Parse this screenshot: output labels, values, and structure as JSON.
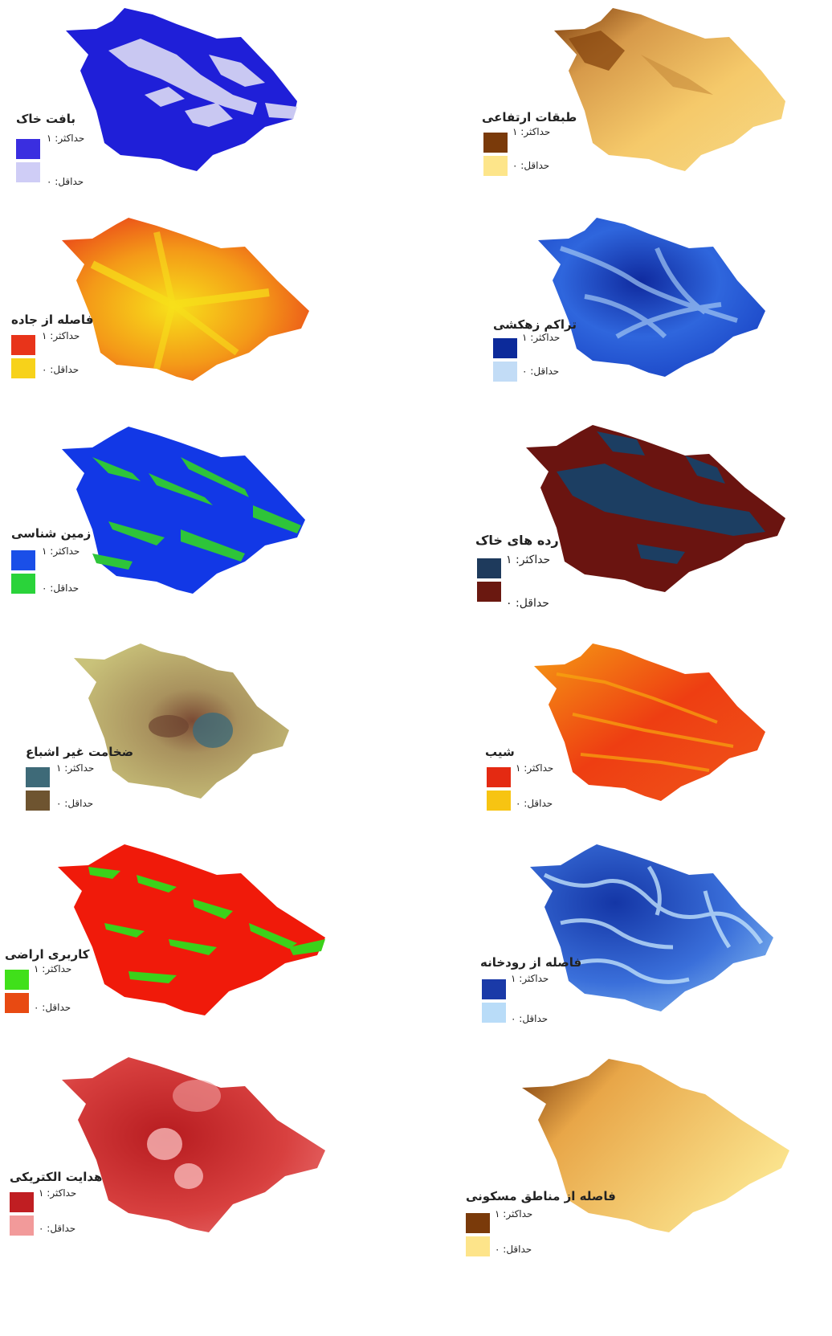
{
  "min_prefix": "حداقل:",
  "max_prefix": "حداکثر:",
  "min_value": "۰",
  "max_value": "۱",
  "maps": [
    {
      "key": "soil_texture",
      "title": "بافت خاک",
      "hi": "#3a2ee0",
      "lo": "#cfcdf6",
      "fill": "#1f1fd8",
      "alt": "#c9c8f2"
    },
    {
      "key": "elevation",
      "title": "طبقات ارتفاعی",
      "hi": "#7a3a0a",
      "lo": "#fde58a",
      "fill": "#f2c46a",
      "alt": "#8b4a12"
    },
    {
      "key": "road_distance",
      "title": "فاصله از جاده",
      "hi": "#e8341a",
      "lo": "#f7d21a",
      "fill": "#f28a1a",
      "alt": "#f5e21a"
    },
    {
      "key": "drainage_density",
      "title": "تراکم زهکشی",
      "hi": "#0c2a9a",
      "lo": "#c2dcf6",
      "fill": "#1740c8",
      "alt": "#9fc4f2"
    },
    {
      "key": "geology",
      "title": "زمین شناسی",
      "hi": "#1a4fe8",
      "lo": "#2ad33a",
      "fill": "#1238e6",
      "alt": "#2ec43a"
    },
    {
      "key": "soil_classes",
      "title": "رده های خاک",
      "hi": "#1e3a5c",
      "lo": "#6a1810",
      "fill": "#6a1410",
      "alt": "#1c3e62"
    },
    {
      "key": "unsaturated_thickness",
      "title": "ضخامت غیر اشباع",
      "hi": "#3e6a78",
      "lo": "#6e5430",
      "fill": "#b8ae6a",
      "alt": "#4a6e7e"
    },
    {
      "key": "slope",
      "title": "شیب",
      "hi": "#e42a12",
      "lo": "#f7c412",
      "fill": "#ee4a10",
      "alt": "#f6a60e"
    },
    {
      "key": "land_use",
      "title": "کاربری اراضی",
      "hi": "#40e01a",
      "lo": "#e84a12",
      "fill": "#f01a0a",
      "alt": "#3bd11a"
    },
    {
      "key": "river_distance",
      "title": "فاصله از رودخانه",
      "hi": "#1a3aa8",
      "lo": "#b9dcf8",
      "fill": "#1e3fb0",
      "alt": "#a8d2f6"
    },
    {
      "key": "electrical_conductivity",
      "title": "هدایت الکتریکی",
      "hi": "#c01e22",
      "lo": "#f29a9a",
      "fill": "#dc3e3e",
      "alt": "#f7b8b8"
    },
    {
      "key": "residential_distance",
      "title": "فاصله از مناطق مسکونی",
      "hi": "#7a3a0a",
      "lo": "#fde48a",
      "fill": "#f4cc66",
      "alt": "#8b4010"
    }
  ]
}
